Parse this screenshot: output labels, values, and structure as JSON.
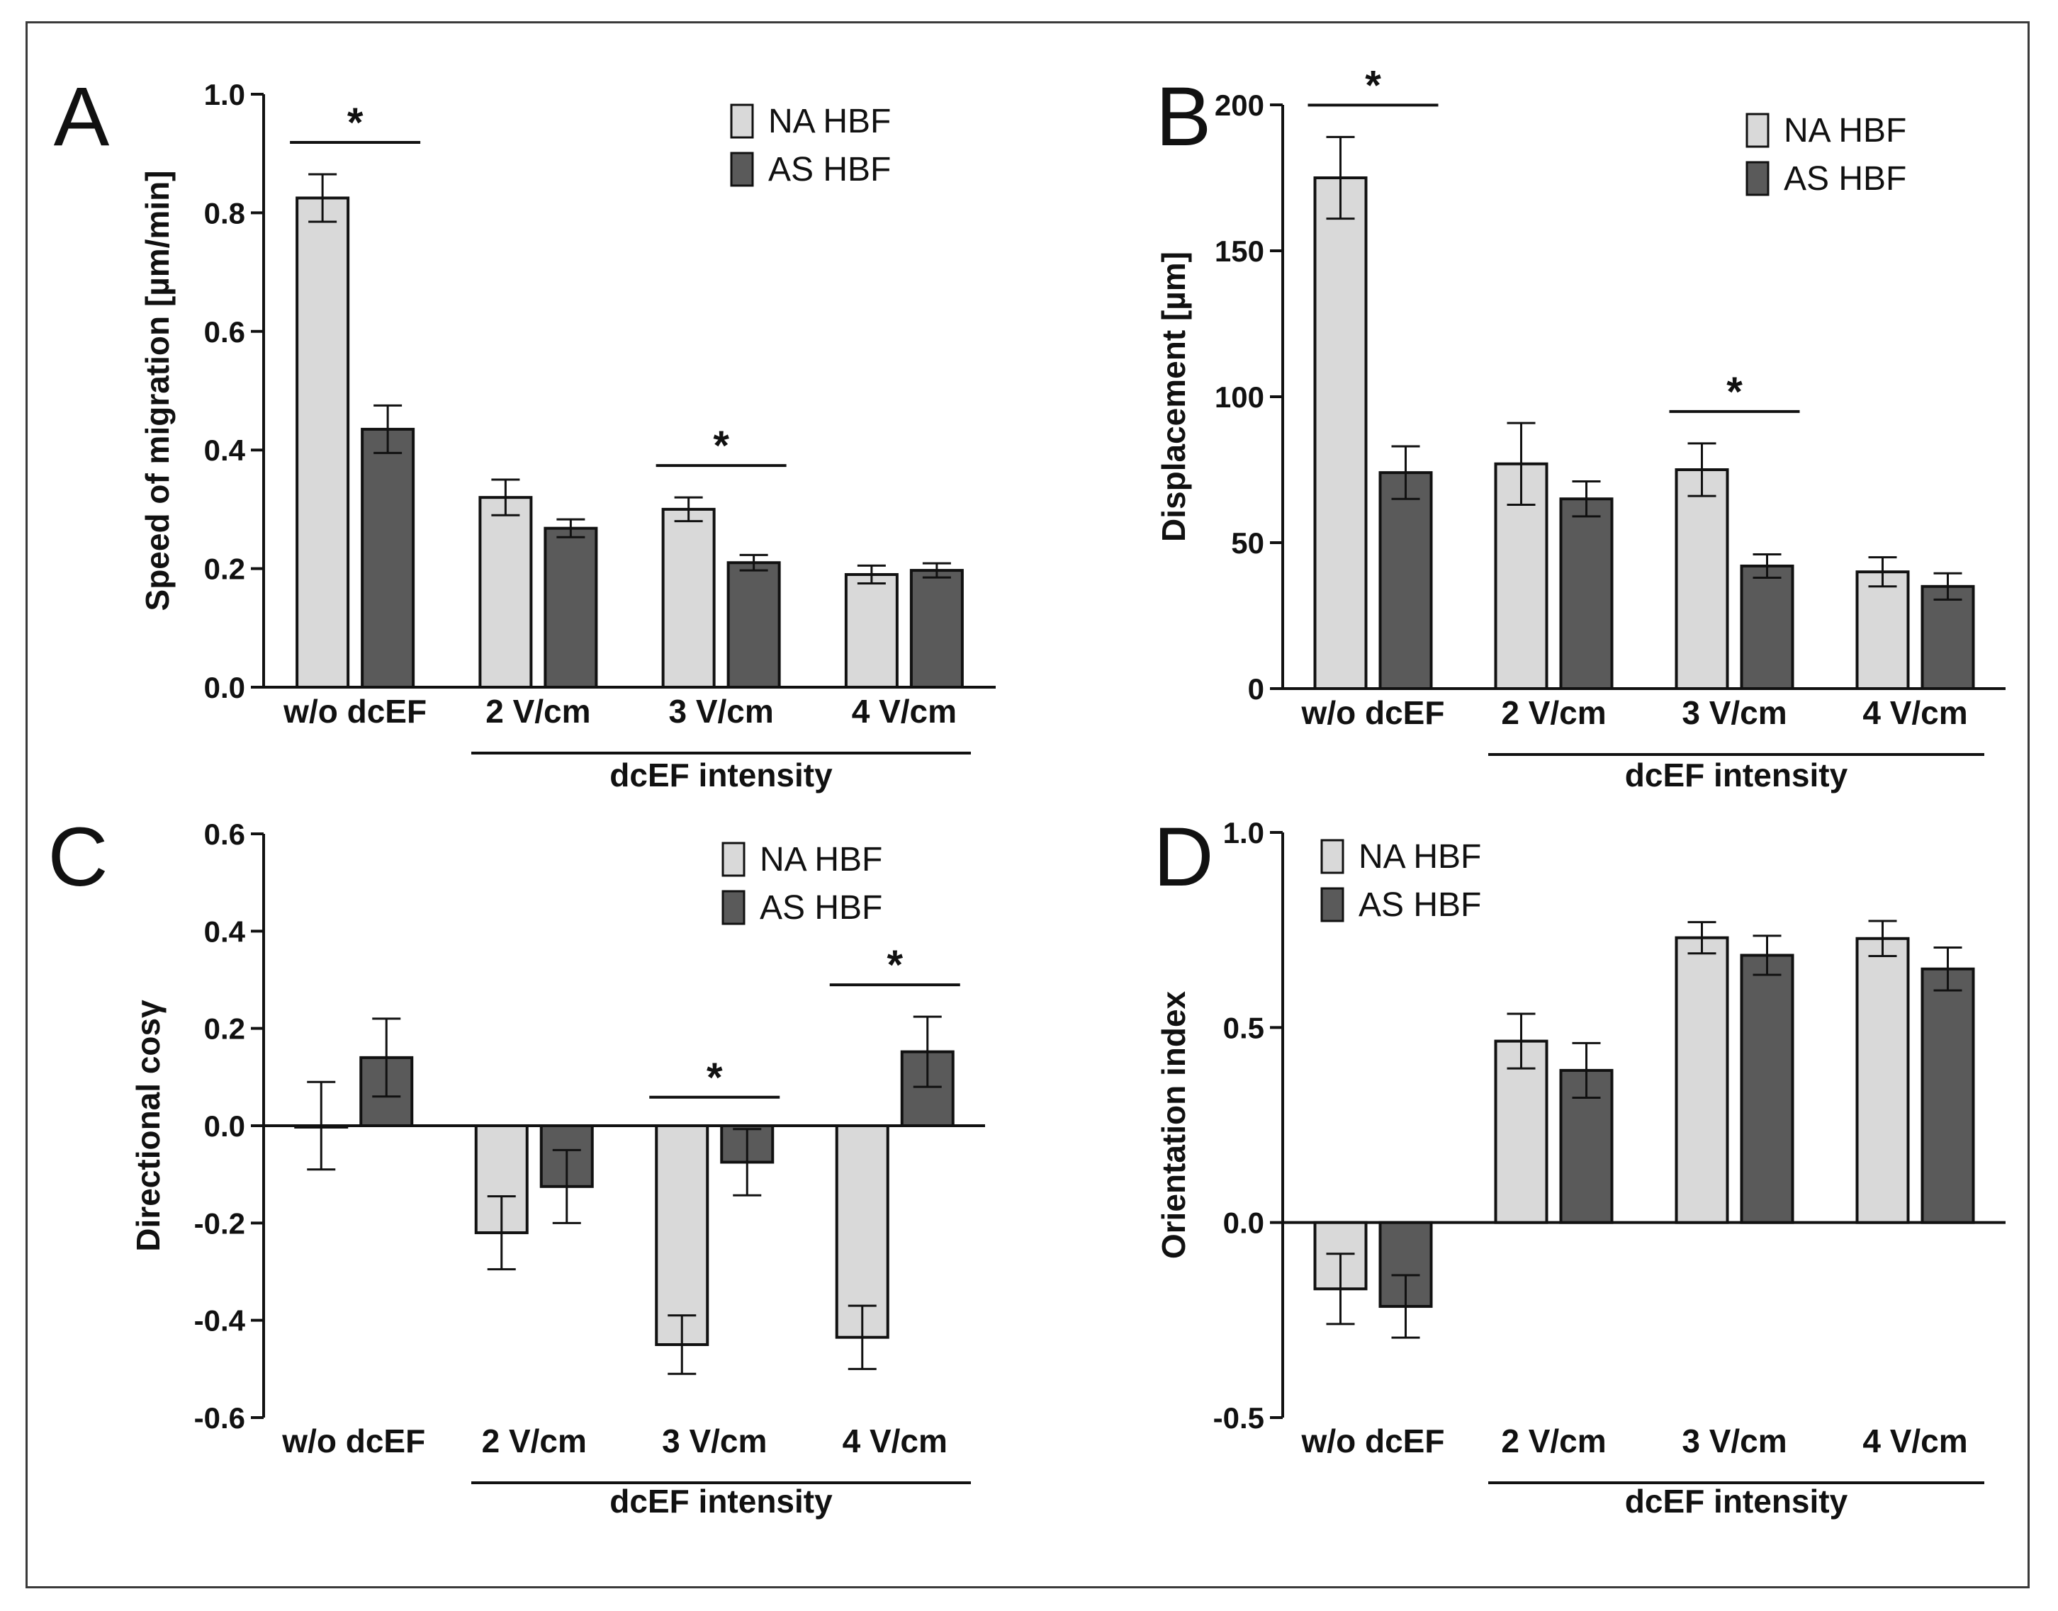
{
  "figure": {
    "panel_count": 4
  },
  "chart_data": [
    {
      "id": "A",
      "type": "bar",
      "panel_label": "A",
      "ylabel": "Speed of migration [µm/min]",
      "group_label": "dcEF intensity",
      "categories": [
        "w/o dcEF",
        "2 V/cm",
        "3 V/cm",
        "4 V/cm"
      ],
      "ylim": [
        0,
        1.0
      ],
      "yticks": [
        0.0,
        0.2,
        0.4,
        0.6,
        0.8,
        1.0
      ],
      "ytick_labels": [
        "0.0",
        "0.2",
        "0.4",
        "0.6",
        "0.8",
        "1.0"
      ],
      "series": [
        {
          "name": "NA HBF",
          "color": "#d9d9d9",
          "values": [
            0.825,
            0.32,
            0.3,
            0.19
          ],
          "errors": [
            0.04,
            0.03,
            0.02,
            0.015
          ]
        },
        {
          "name": "AS HBF",
          "color": "#5a5a5a",
          "values": [
            0.435,
            0.268,
            0.21,
            0.197
          ],
          "errors": [
            0.04,
            0.015,
            0.013,
            0.012
          ]
        }
      ],
      "significance": [
        {
          "category_index": 0,
          "label": "*"
        },
        {
          "category_index": 2,
          "label": "*"
        }
      ]
    },
    {
      "id": "B",
      "type": "bar",
      "panel_label": "B",
      "ylabel": "Displacement [µm]",
      "group_label": "dcEF intensity",
      "categories": [
        "w/o dcEF",
        "2 V/cm",
        "3 V/cm",
        "4 V/cm"
      ],
      "ylim": [
        0,
        200
      ],
      "yticks": [
        0,
        50,
        100,
        150,
        200
      ],
      "ytick_labels": [
        "0",
        "50",
        "100",
        "150",
        "200"
      ],
      "series": [
        {
          "name": "NA HBF",
          "color": "#d9d9d9",
          "values": [
            175,
            77,
            75,
            40
          ],
          "errors": [
            14,
            14,
            9,
            5
          ]
        },
        {
          "name": "AS HBF",
          "color": "#5a5a5a",
          "values": [
            74,
            65,
            42,
            35
          ],
          "errors": [
            9,
            6,
            4,
            4.5
          ]
        }
      ],
      "significance": [
        {
          "category_index": 0,
          "label": "*"
        },
        {
          "category_index": 2,
          "label": "*"
        }
      ]
    },
    {
      "id": "C",
      "type": "bar",
      "panel_label": "C",
      "ylabel": "Directional cosγ",
      "group_label": "dcEF intensity",
      "categories": [
        "w/o dcEF",
        "2 V/cm",
        "3 V/cm",
        "4 V/cm"
      ],
      "ylim": [
        -0.6,
        0.6
      ],
      "yticks": [
        -0.6,
        -0.4,
        -0.2,
        0.0,
        0.2,
        0.4,
        0.6
      ],
      "ytick_labels": [
        "-0.6",
        "-0.4",
        "-0.2",
        "0.0",
        "0.2",
        "0.4",
        "0.6"
      ],
      "series": [
        {
          "name": "NA HBF",
          "color": "#d9d9d9",
          "values": [
            0.0,
            -0.22,
            -0.45,
            -0.435
          ],
          "errors": [
            0.09,
            0.075,
            0.06,
            0.065
          ]
        },
        {
          "name": "AS HBF",
          "color": "#5a5a5a",
          "values": [
            0.14,
            -0.125,
            -0.075,
            0.152
          ],
          "errors": [
            0.08,
            0.075,
            0.068,
            0.072
          ]
        }
      ],
      "significance": [
        {
          "category_index": 2,
          "label": "*"
        },
        {
          "category_index": 3,
          "label": "*"
        }
      ]
    },
    {
      "id": "D",
      "type": "bar",
      "panel_label": "D",
      "ylabel": "Orientation index",
      "group_label": "dcEF intensity",
      "categories": [
        "w/o dcEF",
        "2 V/cm",
        "3 V/cm",
        "4 V/cm"
      ],
      "ylim": [
        -0.5,
        1.0
      ],
      "yticks": [
        -0.5,
        0.0,
        0.5,
        1.0
      ],
      "ytick_labels": [
        "-0.5",
        "0.0",
        "0.5",
        "1.0"
      ],
      "series": [
        {
          "name": "NA HBF",
          "color": "#d9d9d9",
          "values": [
            -0.17,
            0.465,
            0.73,
            0.728
          ],
          "errors": [
            0.09,
            0.07,
            0.04,
            0.045
          ]
        },
        {
          "name": "AS HBF",
          "color": "#5a5a5a",
          "values": [
            -0.215,
            0.39,
            0.685,
            0.65
          ],
          "errors": [
            0.08,
            0.07,
            0.05,
            0.055
          ]
        }
      ],
      "significance": []
    }
  ]
}
